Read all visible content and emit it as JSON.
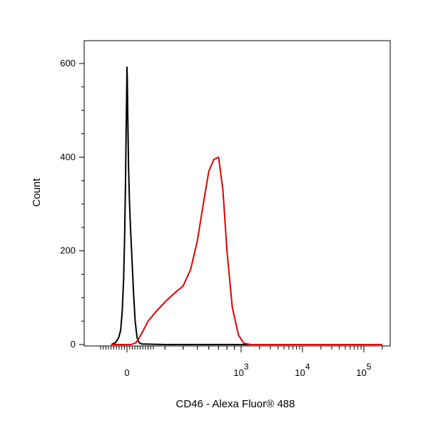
{
  "chart_data": {
    "type": "line",
    "xlabel": "CD46 - Alexa Fluor® 488",
    "ylabel": "Count",
    "x_scale": "biexponential",
    "grid": false,
    "legend": "none",
    "ylim": [
      0,
      680
    ],
    "y_ticks": [
      {
        "value": 0,
        "label": "0"
      },
      {
        "value": 200,
        "label": "200"
      },
      {
        "value": 400,
        "label": "400"
      },
      {
        "value": 600,
        "label": "600"
      }
    ],
    "x_ticks": [
      {
        "value": 0,
        "label": "0",
        "exp": ""
      },
      {
        "value": 1000,
        "label": "10",
        "exp": "3"
      },
      {
        "value": 10000,
        "label": "10",
        "exp": "4"
      },
      {
        "value": 100000,
        "label": "10",
        "exp": "5"
      }
    ],
    "series": [
      {
        "color": "#000000",
        "points": [
          [
            -150,
            0
          ],
          [
            -110,
            4
          ],
          [
            -80,
            14
          ],
          [
            -60,
            30
          ],
          [
            -45,
            70
          ],
          [
            -32,
            140
          ],
          [
            -22,
            230
          ],
          [
            -14,
            340
          ],
          [
            -8,
            450
          ],
          [
            -3,
            540
          ],
          [
            0,
            592
          ],
          [
            3,
            570
          ],
          [
            8,
            480
          ],
          [
            15,
            380
          ],
          [
            24,
            300
          ],
          [
            35,
            240
          ],
          [
            48,
            180
          ],
          [
            62,
            110
          ],
          [
            78,
            50
          ],
          [
            95,
            15
          ],
          [
            115,
            4
          ],
          [
            140,
            1
          ],
          [
            300,
            0
          ],
          [
            1000,
            0
          ],
          [
            10000,
            0
          ],
          [
            200000,
            0
          ]
        ]
      },
      {
        "color": "#e00000",
        "points": [
          [
            -150,
            0
          ],
          [
            40,
            0
          ],
          [
            85,
            4
          ],
          [
            110,
            12
          ],
          [
            150,
            28
          ],
          [
            200,
            50
          ],
          [
            260,
            70
          ],
          [
            310,
            95
          ],
          [
            350,
            110
          ],
          [
            400,
            125
          ],
          [
            450,
            160
          ],
          [
            500,
            220
          ],
          [
            550,
            300
          ],
          [
            600,
            370
          ],
          [
            650,
            395
          ],
          [
            700,
            400
          ],
          [
            750,
            330
          ],
          [
            800,
            200
          ],
          [
            870,
            80
          ],
          [
            960,
            20
          ],
          [
            1100,
            3
          ],
          [
            1400,
            0
          ],
          [
            10000,
            0
          ],
          [
            200000,
            0
          ]
        ]
      }
    ]
  }
}
